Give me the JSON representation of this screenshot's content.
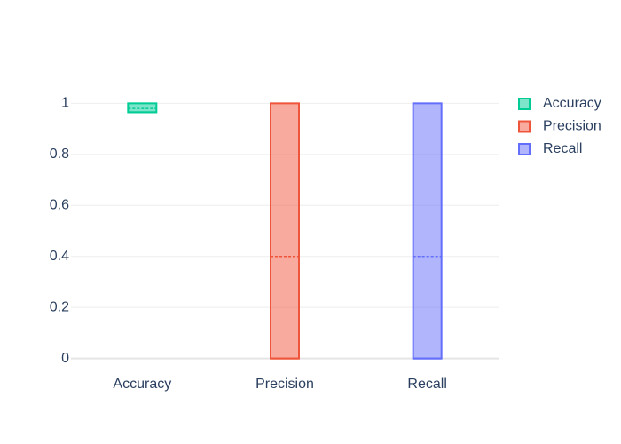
{
  "chart_data": {
    "type": "box",
    "categories": [
      "Accuracy",
      "Precision",
      "Recall"
    ],
    "series": [
      {
        "name": "Accuracy",
        "color": "#00cc96",
        "min": 0.965,
        "q1": 0.965,
        "median": 0.965,
        "q3": 1,
        "max": 1,
        "mean": 0.98
      },
      {
        "name": "Precision",
        "color": "#EF553B",
        "min": 0,
        "q1": 0,
        "median": 0,
        "q3": 1,
        "max": 1,
        "mean": 0.4
      },
      {
        "name": "Recall",
        "color": "#636efa",
        "min": 0,
        "q1": 0,
        "median": 0,
        "q3": 1,
        "max": 1,
        "mean": 0.4
      }
    ],
    "ylim": [
      -0.05,
      1.05
    ],
    "yticks": [
      0,
      0.2,
      0.4,
      0.6,
      0.8,
      1
    ],
    "grid": true,
    "legend": "right"
  }
}
